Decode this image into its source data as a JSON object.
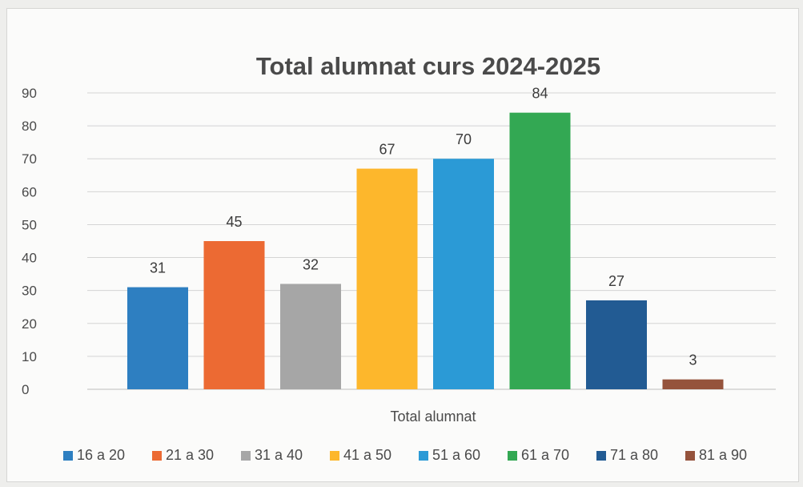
{
  "chart_data": {
    "type": "bar",
    "title": "Total alumnat curs 2024-2025",
    "xlabel": "Total alumnat",
    "ylabel": "",
    "ylim": [
      0,
      90
    ],
    "yticks": [
      0,
      10,
      20,
      30,
      40,
      50,
      60,
      70,
      80,
      90
    ],
    "grid": true,
    "legend_position": "bottom",
    "series": [
      {
        "name": "16 a 20",
        "value": 31,
        "color": "#2e7fc1"
      },
      {
        "name": "21 a 30",
        "value": 45,
        "color": "#ec6a33"
      },
      {
        "name": "31 a 40",
        "value": 32,
        "color": "#a6a6a6"
      },
      {
        "name": "41 a 50",
        "value": 67,
        "color": "#fdb72c"
      },
      {
        "name": "51 a 60",
        "value": 70,
        "color": "#2b9ad6"
      },
      {
        "name": "61 a 70",
        "value": 84,
        "color": "#33a853"
      },
      {
        "name": "71 a 80",
        "value": 27,
        "color": "#225b93"
      },
      {
        "name": "81 a 90",
        "value": 3,
        "color": "#95533c"
      }
    ]
  }
}
